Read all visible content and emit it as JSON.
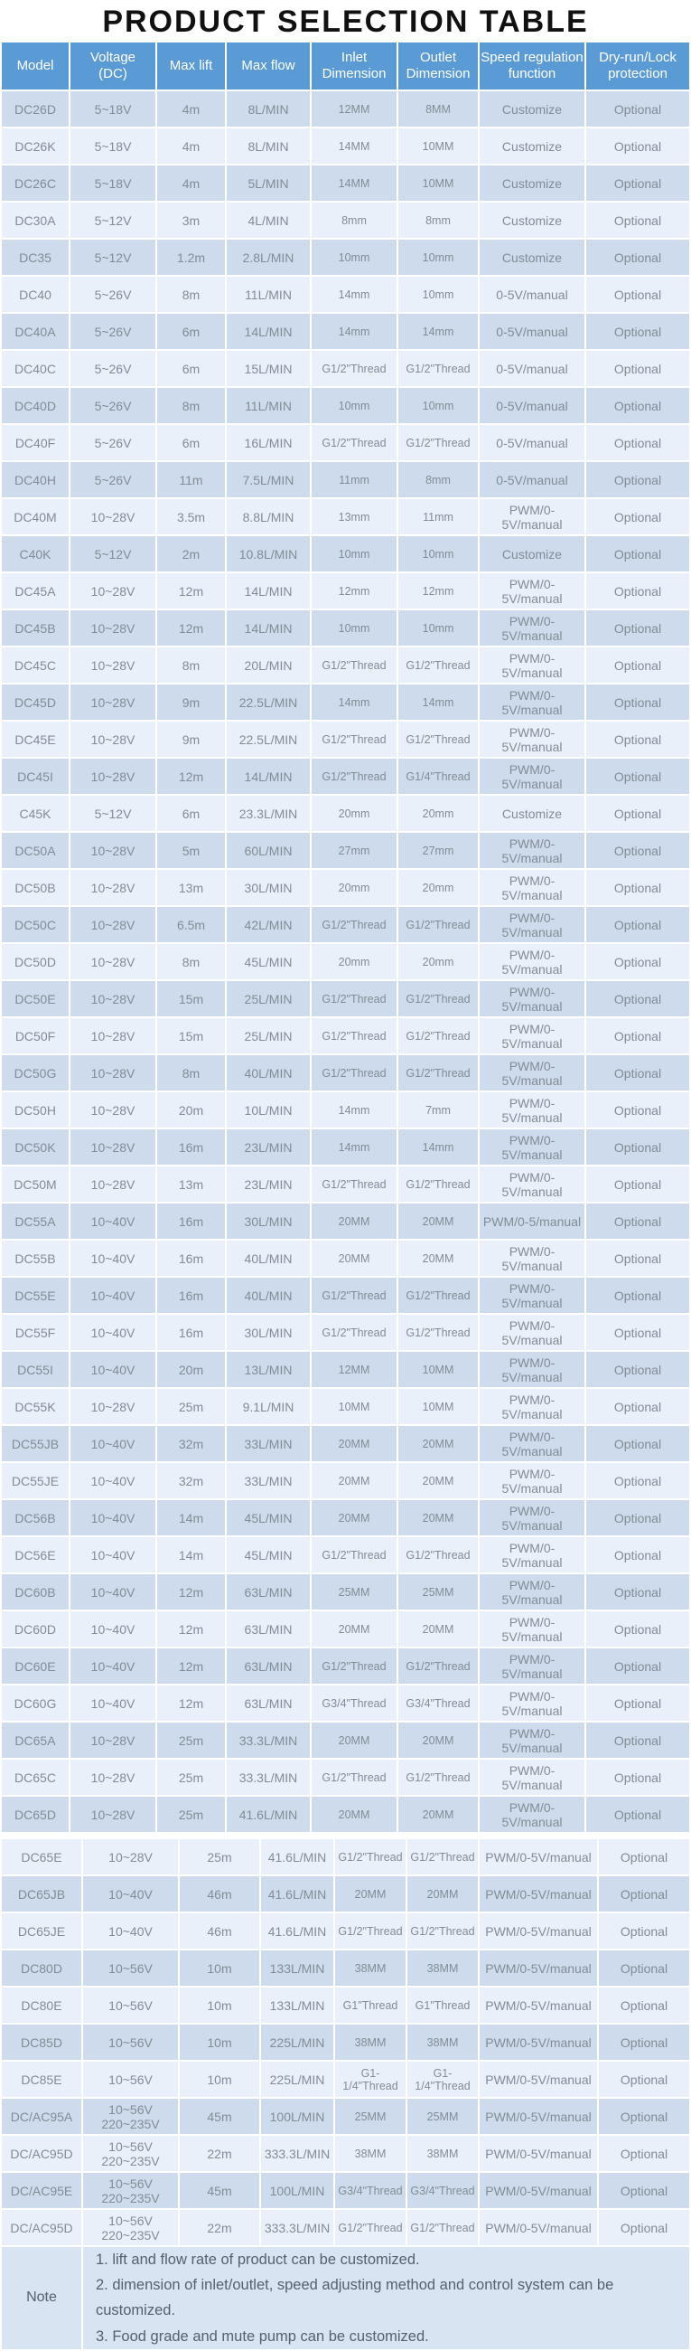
{
  "title": "PRODUCT SELECTION TABLE",
  "colors": {
    "header_bg": "#5b9bd5",
    "row_dark": "#cedbec",
    "row_light": "#e9f0f9",
    "note_bg": "#d8e4f1",
    "cell_text": "#828c96",
    "header_text": "#ffffff",
    "note_text": "#56616e",
    "title_text": "#111111"
  },
  "table": {
    "columns": [
      "Model",
      "Voltage\n(DC)",
      "Max lift",
      "Max flow",
      "Inlet\nDimension",
      "Outlet\nDimension",
      "Speed regulation\nfunction",
      "Dry-run/Lock\nprotection"
    ],
    "rows_segment1": [
      {
        "model": "DC26D",
        "voltage": "5~18V",
        "max_lift": "4m",
        "max_flow": "8L/MIN",
        "inlet": "12MM",
        "outlet": "8MM",
        "speed_regulation": "Customize",
        "protection": "Optional"
      },
      {
        "model": "DC26K",
        "voltage": "5~18V",
        "max_lift": "4m",
        "max_flow": "8L/MIN",
        "inlet": "14MM",
        "outlet": "10MM",
        "speed_regulation": "Customize",
        "protection": "Optional"
      },
      {
        "model": "DC26C",
        "voltage": "5~18V",
        "max_lift": "4m",
        "max_flow": "5L/MIN",
        "inlet": "14MM",
        "outlet": "10MM",
        "speed_regulation": "Customize",
        "protection": "Optional"
      },
      {
        "model": "DC30A",
        "voltage": "5~12V",
        "max_lift": "3m",
        "max_flow": "4L/MIN",
        "inlet": "8mm",
        "outlet": "8mm",
        "speed_regulation": "Customize",
        "protection": "Optional"
      },
      {
        "model": "DC35",
        "voltage": "5~12V",
        "max_lift": "1.2m",
        "max_flow": "2.8L/MIN",
        "inlet": "10mm",
        "outlet": "10mm",
        "speed_regulation": "Customize",
        "protection": "Optional"
      },
      {
        "model": "DC40",
        "voltage": "5~26V",
        "max_lift": "8m",
        "max_flow": "11L/MIN",
        "inlet": "14mm",
        "outlet": "10mm",
        "speed_regulation": "0-5V/manual",
        "protection": "Optional"
      },
      {
        "model": "DC40A",
        "voltage": "5~26V",
        "max_lift": "6m",
        "max_flow": "14L/MIN",
        "inlet": "14mm",
        "outlet": "14mm",
        "speed_regulation": "0-5V/manual",
        "protection": "Optional"
      },
      {
        "model": "DC40C",
        "voltage": "5~26V",
        "max_lift": "6m",
        "max_flow": "15L/MIN",
        "inlet": "G1/2\"Thread",
        "outlet": "G1/2\"Thread",
        "speed_regulation": "0-5V/manual",
        "protection": "Optional"
      },
      {
        "model": "DC40D",
        "voltage": "5~26V",
        "max_lift": "8m",
        "max_flow": "11L/MIN",
        "inlet": "10mm",
        "outlet": "10mm",
        "speed_regulation": "0-5V/manual",
        "protection": "Optional"
      },
      {
        "model": "DC40F",
        "voltage": "5~26V",
        "max_lift": "6m",
        "max_flow": "16L/MIN",
        "inlet": "G1/2\"Thread",
        "outlet": "G1/2\"Thread",
        "speed_regulation": "0-5V/manual",
        "protection": "Optional"
      },
      {
        "model": "DC40H",
        "voltage": "5~26V",
        "max_lift": "11m",
        "max_flow": "7.5L/MIN",
        "inlet": "11mm",
        "outlet": "8mm",
        "speed_regulation": "0-5V/manual",
        "protection": "Optional"
      },
      {
        "model": "DC40M",
        "voltage": "10~28V",
        "max_lift": "3.5m",
        "max_flow": "8.8L/MIN",
        "inlet": "13mm",
        "outlet": "11mm",
        "speed_regulation": "PWM/0-5V/manual",
        "protection": "Optional"
      },
      {
        "model": "C40K",
        "voltage": "5~12V",
        "max_lift": "2m",
        "max_flow": "10.8L/MIN",
        "inlet": "10mm",
        "outlet": "10mm",
        "speed_regulation": "Customize",
        "protection": "Optional"
      },
      {
        "model": "DC45A",
        "voltage": "10~28V",
        "max_lift": "12m",
        "max_flow": "14L/MIN",
        "inlet": "12mm",
        "outlet": "12mm",
        "speed_regulation": "PWM/0-5V/manual",
        "protection": "Optional"
      },
      {
        "model": "DC45B",
        "voltage": "10~28V",
        "max_lift": "12m",
        "max_flow": "14L/MIN",
        "inlet": "10mm",
        "outlet": "10mm",
        "speed_regulation": "PWM/0-5V/manual",
        "protection": "Optional"
      },
      {
        "model": "DC45C",
        "voltage": "10~28V",
        "max_lift": "8m",
        "max_flow": "20L/MIN",
        "inlet": "G1/2\"Thread",
        "outlet": "G1/2\"Thread",
        "speed_regulation": "PWM/0-5V/manual",
        "protection": "Optional"
      },
      {
        "model": "DC45D",
        "voltage": "10~28V",
        "max_lift": "9m",
        "max_flow": "22.5L/MIN",
        "inlet": "14mm",
        "outlet": "14mm",
        "speed_regulation": "PWM/0-5V/manual",
        "protection": "Optional"
      },
      {
        "model": "DC45E",
        "voltage": "10~28V",
        "max_lift": "9m",
        "max_flow": "22.5L/MIN",
        "inlet": "G1/2\"Thread",
        "outlet": "G1/2\"Thread",
        "speed_regulation": "PWM/0-5V/manual",
        "protection": "Optional"
      },
      {
        "model": "DC45I",
        "voltage": "10~28V",
        "max_lift": "12m",
        "max_flow": "14L/MIN",
        "inlet": "G1/2\"Thread",
        "outlet": "G1/4\"Thread",
        "speed_regulation": "PWM/0-5V/manual",
        "protection": "Optional"
      },
      {
        "model": "C45K",
        "voltage": "5~12V",
        "max_lift": "6m",
        "max_flow": "23.3L/MIN",
        "inlet": "20mm",
        "outlet": "20mm",
        "speed_regulation": "Customize",
        "protection": "Optional"
      },
      {
        "model": "DC50A",
        "voltage": "10~28V",
        "max_lift": "5m",
        "max_flow": "60L/MIN",
        "inlet": "27mm",
        "outlet": "27mm",
        "speed_regulation": "PWM/0-5V/manual",
        "protection": "Optional"
      },
      {
        "model": "DC50B",
        "voltage": "10~28V",
        "max_lift": "13m",
        "max_flow": "30L/MIN",
        "inlet": "20mm",
        "outlet": "20mm",
        "speed_regulation": "PWM/0-5V/manual",
        "protection": "Optional"
      },
      {
        "model": "DC50C",
        "voltage": "10~28V",
        "max_lift": "6.5m",
        "max_flow": "42L/MIN",
        "inlet": "G1/2\"Thread",
        "outlet": "G1/2\"Thread",
        "speed_regulation": "PWM/0-5V/manual",
        "protection": "Optional"
      },
      {
        "model": "DC50D",
        "voltage": "10~28V",
        "max_lift": "8m",
        "max_flow": "45L/MIN",
        "inlet": "20mm",
        "outlet": "20mm",
        "speed_regulation": "PWM/0-5V/manual",
        "protection": "Optional"
      },
      {
        "model": "DC50E",
        "voltage": "10~28V",
        "max_lift": "15m",
        "max_flow": "25L/MIN",
        "inlet": "G1/2\"Thread",
        "outlet": "G1/2\"Thread",
        "speed_regulation": "PWM/0-5V/manual",
        "protection": "Optional"
      },
      {
        "model": "DC50F",
        "voltage": "10~28V",
        "max_lift": "15m",
        "max_flow": "25L/MIN",
        "inlet": "G1/2\"Thread",
        "outlet": "G1/2\"Thread",
        "speed_regulation": "PWM/0-5V/manual",
        "protection": "Optional"
      },
      {
        "model": "DC50G",
        "voltage": "10~28V",
        "max_lift": "8m",
        "max_flow": "40L/MIN",
        "inlet": "G1/2\"Thread",
        "outlet": "G1/2\"Thread",
        "speed_regulation": "PWM/0-5V/manual",
        "protection": "Optional"
      },
      {
        "model": "DC50H",
        "voltage": "10~28V",
        "max_lift": "20m",
        "max_flow": "10L/MIN",
        "inlet": "14mm",
        "outlet": "7mm",
        "speed_regulation": "PWM/0-5V/manual",
        "protection": "Optional"
      },
      {
        "model": "DC50K",
        "voltage": "10~28V",
        "max_lift": "16m",
        "max_flow": "23L/MIN",
        "inlet": "14mm",
        "outlet": "14mm",
        "speed_regulation": "PWM/0-5V/manual",
        "protection": "Optional"
      },
      {
        "model": "DC50M",
        "voltage": "10~28V",
        "max_lift": "13m",
        "max_flow": "23L/MIN",
        "inlet": "G1/2\"Thread",
        "outlet": "G1/2\"Thread",
        "speed_regulation": "PWM/0-5V/manual",
        "protection": "Optional"
      },
      {
        "model": "DC55A",
        "voltage": "10~40V",
        "max_lift": "16m",
        "max_flow": "30L/MIN",
        "inlet": "20MM",
        "outlet": "20MM",
        "speed_regulation": "PWM/0-5/manual",
        "protection": "Optional"
      },
      {
        "model": "DC55B",
        "voltage": "10~40V",
        "max_lift": "16m",
        "max_flow": "40L/MIN",
        "inlet": "20MM",
        "outlet": "20MM",
        "speed_regulation": "PWM/0-5V/manual",
        "protection": "Optional"
      },
      {
        "model": "DC55E",
        "voltage": "10~40V",
        "max_lift": "16m",
        "max_flow": "40L/MIN",
        "inlet": "G1/2\"Thread",
        "outlet": "G1/2\"Thread",
        "speed_regulation": "PWM/0-5V/manual",
        "protection": "Optional"
      },
      {
        "model": "DC55F",
        "voltage": "10~40V",
        "max_lift": "16m",
        "max_flow": "30L/MIN",
        "inlet": "G1/2\"Thread",
        "outlet": "G1/2\"Thread",
        "speed_regulation": "PWM/0-5V/manual",
        "protection": "Optional"
      },
      {
        "model": "DC55I",
        "voltage": "10~40V",
        "max_lift": "20m",
        "max_flow": "13L/MIN",
        "inlet": "12MM",
        "outlet": "10MM",
        "speed_regulation": "PWM/0-5V/manual",
        "protection": "Optional"
      },
      {
        "model": "DC55K",
        "voltage": "10~28V",
        "max_lift": "25m",
        "max_flow": "9.1L/MIN",
        "inlet": "10MM",
        "outlet": "10MM",
        "speed_regulation": "PWM/0-5V/manual",
        "protection": "Optional"
      },
      {
        "model": "DC55JB",
        "voltage": "10~40V",
        "max_lift": "32m",
        "max_flow": "33L/MIN",
        "inlet": "20MM",
        "outlet": "20MM",
        "speed_regulation": "PWM/0-5V/manual",
        "protection": "Optional"
      },
      {
        "model": "DC55JE",
        "voltage": "10~40V",
        "max_lift": "32m",
        "max_flow": "33L/MIN",
        "inlet": "20MM",
        "outlet": "20MM",
        "speed_regulation": "PWM/0-5V/manual",
        "protection": "Optional"
      },
      {
        "model": "DC56B",
        "voltage": "10~40V",
        "max_lift": "14m",
        "max_flow": "45L/MIN",
        "inlet": "20MM",
        "outlet": "20MM",
        "speed_regulation": "PWM/0-5V/manual",
        "protection": "Optional"
      },
      {
        "model": "DC56E",
        "voltage": "10~40V",
        "max_lift": "14m",
        "max_flow": "45L/MIN",
        "inlet": "G1/2\"Thread",
        "outlet": "G1/2\"Thread",
        "speed_regulation": "PWM/0-5V/manual",
        "protection": "Optional"
      },
      {
        "model": "DC60B",
        "voltage": "10~40V",
        "max_lift": "12m",
        "max_flow": "63L/MIN",
        "inlet": "25MM",
        "outlet": "25MM",
        "speed_regulation": "PWM/0-5V/manual",
        "protection": "Optional"
      },
      {
        "model": "DC60D",
        "voltage": "10~40V",
        "max_lift": "12m",
        "max_flow": "63L/MIN",
        "inlet": "20MM",
        "outlet": "20MM",
        "speed_regulation": "PWM/0-5V/manual",
        "protection": "Optional"
      },
      {
        "model": "DC60E",
        "voltage": "10~40V",
        "max_lift": "12m",
        "max_flow": "63L/MIN",
        "inlet": "G1/2\"Thread",
        "outlet": "G1/2\"Thread",
        "speed_regulation": "PWM/0-5V/manual",
        "protection": "Optional"
      },
      {
        "model": "DC60G",
        "voltage": "10~40V",
        "max_lift": "12m",
        "max_flow": "63L/MIN",
        "inlet": "G3/4\"Thread",
        "outlet": "G3/4\"Thread",
        "speed_regulation": "PWM/0-5V/manual",
        "protection": "Optional"
      },
      {
        "model": "DC65A",
        "voltage": "10~28V",
        "max_lift": "25m",
        "max_flow": "33.3L/MIN",
        "inlet": "20MM",
        "outlet": "20MM",
        "speed_regulation": "PWM/0-5V/manual",
        "protection": "Optional"
      },
      {
        "model": "DC65C",
        "voltage": "10~28V",
        "max_lift": "25m",
        "max_flow": "33.3L/MIN",
        "inlet": "G1/2\"Thread",
        "outlet": "G1/2\"Thread",
        "speed_regulation": "PWM/0-5V/manual",
        "protection": "Optional"
      },
      {
        "model": "DC65D",
        "voltage": "10~28V",
        "max_lift": "25m",
        "max_flow": "41.6L/MIN",
        "inlet": "20MM",
        "outlet": "20MM",
        "speed_regulation": "PWM/0-5V/manual",
        "protection": "Optional"
      }
    ],
    "rows_segment2": [
      {
        "model": "DC65E",
        "voltage": "10~28V",
        "max_lift": "25m",
        "max_flow": "41.6L/MIN",
        "inlet": "G1/2\"Thread",
        "outlet": "G1/2\"Thread",
        "speed_regulation": "PWM/0-5V/manual",
        "protection": "Optional"
      },
      {
        "model": "DC65JB",
        "voltage": "10~40V",
        "max_lift": "46m",
        "max_flow": "41.6L/MIN",
        "inlet": "20MM",
        "outlet": "20MM",
        "speed_regulation": "PWM/0-5V/manual",
        "protection": "Optional"
      },
      {
        "model": "DC65JE",
        "voltage": "10~40V",
        "max_lift": "46m",
        "max_flow": "41.6L/MIN",
        "inlet": "G1/2\"Thread",
        "outlet": "G1/2\"Thread",
        "speed_regulation": "PWM/0-5V/manual",
        "protection": "Optional"
      },
      {
        "model": "DC80D",
        "voltage": "10~56V",
        "max_lift": "10m",
        "max_flow": "133L/MIN",
        "inlet": "38MM",
        "outlet": "38MM",
        "speed_regulation": "PWM/0-5V/manual",
        "protection": "Optional"
      },
      {
        "model": "DC80E",
        "voltage": "10~56V",
        "max_lift": "10m",
        "max_flow": "133L/MIN",
        "inlet": "G1\"Thread",
        "outlet": "G1\"Thread",
        "speed_regulation": "PWM/0-5V/manual",
        "protection": "Optional"
      },
      {
        "model": "DC85D",
        "voltage": "10~56V",
        "max_lift": "10m",
        "max_flow": "225L/MIN",
        "inlet": "38MM",
        "outlet": "38MM",
        "speed_regulation": "PWM/0-5V/manual",
        "protection": "Optional"
      },
      {
        "model": "DC85E",
        "voltage": "10~56V",
        "max_lift": "10m",
        "max_flow": "225L/MIN",
        "inlet": "G1-1/4\"Thread",
        "outlet": "G1-1/4\"Thread",
        "speed_regulation": "PWM/0-5V/manual",
        "protection": "Optional"
      },
      {
        "model": "DC/AC95A",
        "voltage": "10~56V\n220~235V",
        "max_lift": "45m",
        "max_flow": "100L/MIN",
        "inlet": "25MM",
        "outlet": "25MM",
        "speed_regulation": "PWM/0-5V/manual",
        "protection": "Optional"
      },
      {
        "model": "DC/AC95D",
        "voltage": "10~56V\n220~235V",
        "max_lift": "22m",
        "max_flow": "333.3L/MIN",
        "inlet": "38MM",
        "outlet": "38MM",
        "speed_regulation": "PWM/0-5V/manual",
        "protection": "Optional"
      },
      {
        "model": "DC/AC95E",
        "voltage": "10~56V\n220~235V",
        "max_lift": "45m",
        "max_flow": "100L/MIN",
        "inlet": "G3/4\"Thread",
        "outlet": "G3/4\"Thread",
        "speed_regulation": "PWM/0-5V/manual",
        "protection": "Optional"
      },
      {
        "model": "DC/AC95D",
        "voltage": "10~56V\n220~235V",
        "max_lift": "22m",
        "max_flow": "333.3L/MIN",
        "inlet": "G1/2\"Thread",
        "outlet": "G1/2\"Thread",
        "speed_regulation": "PWM/0-5V/manual",
        "protection": "Optional"
      }
    ],
    "note_label": "Note",
    "notes": [
      "1. lift and flow rate of product can be customized.",
      "2. dimension of inlet/outlet, speed adjusting method and control system can be customized.",
      "3. Food grade and mute pump can be customized."
    ]
  }
}
